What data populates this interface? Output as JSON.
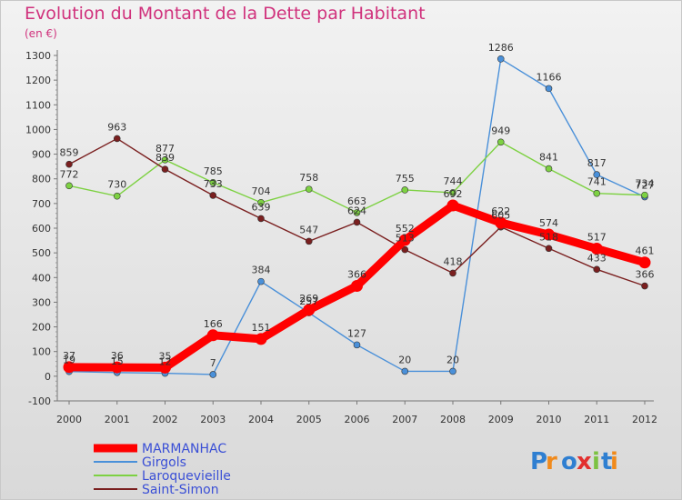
{
  "chart_data": {
    "type": "line",
    "title": "Evolution du Montant de la Dette par Habitant",
    "unit_label": "(en €)",
    "x": [
      "2000",
      "2001",
      "2002",
      "2003",
      "2004",
      "2005",
      "2006",
      "2007",
      "2008",
      "2009",
      "2010",
      "2011",
      "2012"
    ],
    "ylim": [
      -100,
      1300
    ],
    "yticks": [
      -100,
      0,
      100,
      200,
      300,
      400,
      500,
      600,
      700,
      800,
      900,
      1000,
      1100,
      1200,
      1300
    ],
    "grid": false,
    "legend_position": "bottom-left",
    "series": [
      {
        "name": "MARMANHAC",
        "color": "#ff0000",
        "values": [
          37,
          36,
          35,
          166,
          151,
          269,
          366,
          552,
          692,
          622,
          574,
          517,
          461
        ]
      },
      {
        "name": "Girgols",
        "color": "#4a90d9",
        "values": [
          19,
          15,
          12,
          7,
          384,
          257,
          127,
          20,
          20,
          1286,
          1166,
          817,
          727
        ]
      },
      {
        "name": "Laroquevieille",
        "color": "#7dd142",
        "values": [
          772,
          730,
          877,
          785,
          704,
          758,
          663,
          755,
          744,
          949,
          841,
          741,
          734
        ]
      },
      {
        "name": "Saint-Simon",
        "color": "#7a1f1f",
        "values": [
          859,
          963,
          839,
          733,
          639,
          547,
          624,
          513,
          418,
          605,
          518,
          433,
          366
        ]
      }
    ]
  },
  "logo": {
    "text": "Proxiti"
  }
}
